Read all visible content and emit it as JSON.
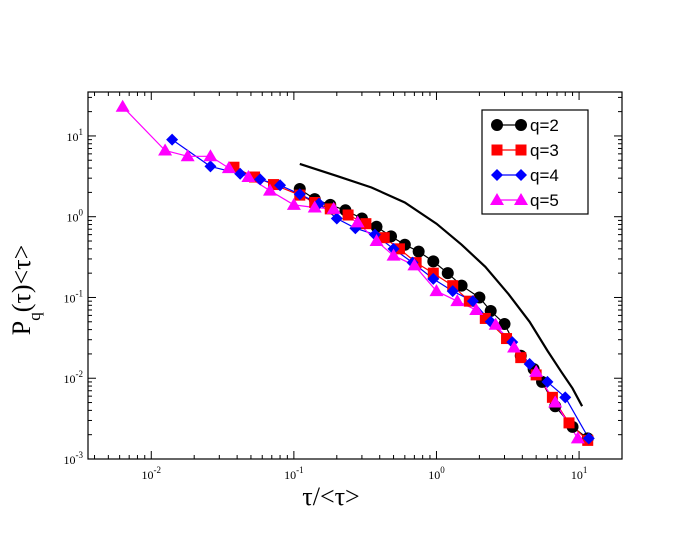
{
  "chart_data": {
    "type": "scatter",
    "title": "",
    "xlabel": "τ/<τ>",
    "ylabel": {
      "main": "P",
      "sub": "q",
      "rest": "(τ)<τ>"
    },
    "xscale": "log",
    "yscale": "log",
    "xlim": [
      0.0036,
      20
    ],
    "ylim": [
      0.001,
      35
    ],
    "grid": false,
    "legend_position": "top-right",
    "x_ticks": [
      {
        "value": 0.01,
        "base": "10",
        "exp": "-2"
      },
      {
        "value": 0.1,
        "base": "10",
        "exp": "-1"
      },
      {
        "value": 1,
        "base": "10",
        "exp": "0"
      },
      {
        "value": 10,
        "base": "10",
        "exp": "1"
      }
    ],
    "y_ticks": [
      {
        "value": 0.001,
        "base": "10",
        "exp": "-3"
      },
      {
        "value": 0.01,
        "base": "10",
        "exp": "-2"
      },
      {
        "value": 0.1,
        "base": "10",
        "exp": "-1"
      },
      {
        "value": 1,
        "base": "10",
        "exp": "0"
      },
      {
        "value": 10,
        "base": "10",
        "exp": "1"
      }
    ],
    "series": [
      {
        "name": "q=2",
        "marker": "circle",
        "color": "#000000",
        "x": [
          0.11,
          0.14,
          0.18,
          0.23,
          0.3,
          0.38,
          0.48,
          0.6,
          0.75,
          0.95,
          1.2,
          1.5,
          2.0,
          2.4,
          3.0,
          3.9,
          4.8,
          5.5,
          6.8,
          9.0,
          11.5
        ],
        "y": [
          2.2,
          1.65,
          1.4,
          1.2,
          0.95,
          0.75,
          0.57,
          0.45,
          0.37,
          0.28,
          0.2,
          0.14,
          0.1,
          0.068,
          0.047,
          0.019,
          0.013,
          0.009,
          0.0045,
          0.0025,
          0.0018
        ]
      },
      {
        "name": "q=3",
        "marker": "square",
        "color": "#ff0000",
        "x": [
          0.038,
          0.053,
          0.072,
          0.11,
          0.14,
          0.18,
          0.24,
          0.32,
          0.43,
          0.55,
          0.72,
          0.95,
          1.3,
          1.7,
          2.2,
          3.1,
          3.9,
          5.0,
          6.5,
          8.5,
          11.5
        ],
        "y": [
          4.1,
          3.1,
          2.5,
          1.85,
          1.5,
          1.25,
          1.05,
          0.82,
          0.55,
          0.4,
          0.27,
          0.2,
          0.14,
          0.09,
          0.055,
          0.031,
          0.018,
          0.011,
          0.0058,
          0.0028,
          0.0017
        ]
      },
      {
        "name": "q=4",
        "marker": "diamond",
        "color": "#0000ff",
        "x": [
          0.014,
          0.026,
          0.042,
          0.058,
          0.08,
          0.11,
          0.15,
          0.2,
          0.27,
          0.37,
          0.5,
          0.68,
          0.95,
          1.3,
          1.8,
          2.4,
          3.4,
          4.5,
          6.0,
          8.0,
          11.7
        ],
        "y": [
          9.0,
          4.2,
          3.4,
          2.9,
          2.45,
          1.9,
          1.45,
          0.95,
          0.72,
          0.6,
          0.4,
          0.27,
          0.17,
          0.12,
          0.09,
          0.05,
          0.028,
          0.015,
          0.009,
          0.0058,
          0.0018
        ]
      },
      {
        "name": "q=5",
        "marker": "triangle",
        "color": "#ff00ff",
        "x": [
          0.0063,
          0.0125,
          0.018,
          0.026,
          0.035,
          0.048,
          0.068,
          0.1,
          0.14,
          0.19,
          0.28,
          0.38,
          0.5,
          0.7,
          1.0,
          1.4,
          1.9,
          2.6,
          3.5,
          5.0,
          6.8,
          9.8
        ],
        "y": [
          23.0,
          6.6,
          5.6,
          5.6,
          4.0,
          3.1,
          2.1,
          1.4,
          1.3,
          1.25,
          0.85,
          0.5,
          0.33,
          0.25,
          0.12,
          0.09,
          0.07,
          0.046,
          0.024,
          0.012,
          0.005,
          0.0018
        ]
      }
    ],
    "reference_curve": {
      "color": "#000000",
      "x": [
        0.11,
        0.2,
        0.35,
        0.6,
        1.0,
        1.5,
        2.2,
        3.2,
        4.5,
        6.0,
        7.5,
        9.0,
        10.5
      ],
      "y": [
        4.5,
        3.2,
        2.3,
        1.5,
        0.82,
        0.45,
        0.24,
        0.11,
        0.05,
        0.022,
        0.012,
        0.0075,
        0.0045
      ]
    }
  }
}
